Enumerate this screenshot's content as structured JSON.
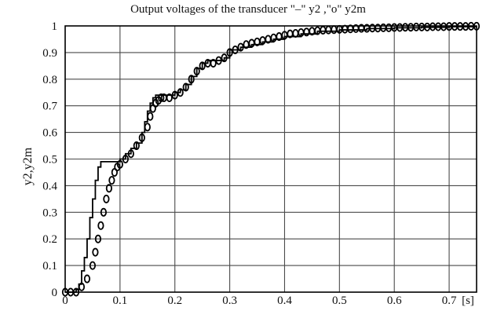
{
  "chart_data": {
    "type": "line",
    "title": "Output voltages of the transducer  \"–\" y2 ,\"o\" y2m",
    "ylabel": "y2,y2m",
    "xlabel": "[s]",
    "xlim": [
      0,
      0.75
    ],
    "ylim": [
      0,
      1
    ],
    "grid": true,
    "xticks": [
      0,
      0.1,
      0.2,
      0.3,
      0.4,
      0.5,
      0.6,
      0.7
    ],
    "xtick_labels": [
      "0",
      "0.1",
      "0.2",
      "0.3",
      "0.4",
      "0.5",
      "0.6",
      "0.7"
    ],
    "yticks": [
      0,
      0.1,
      0.2,
      0.3,
      0.4,
      0.5,
      0.6,
      0.7,
      0.8,
      0.9,
      1
    ],
    "ytick_labels": [
      "0",
      "0.1",
      "0.2",
      "0.3",
      "0.4",
      "0.5",
      "0.6",
      "0.7",
      "0.8",
      "0.9",
      "1"
    ],
    "series": [
      {
        "name": "y2",
        "style": "step line",
        "x": [
          0,
          0.01,
          0.02,
          0.025,
          0.03,
          0.035,
          0.04,
          0.045,
          0.05,
          0.055,
          0.06,
          0.065,
          0.07,
          0.075,
          0.08,
          0.09,
          0.1,
          0.11,
          0.12,
          0.13,
          0.14,
          0.145,
          0.15,
          0.155,
          0.16,
          0.165,
          0.17,
          0.175,
          0.18,
          0.19,
          0.2,
          0.21,
          0.22,
          0.23,
          0.24,
          0.25,
          0.26,
          0.27,
          0.28,
          0.29,
          0.3,
          0.32,
          0.34,
          0.36,
          0.38,
          0.4,
          0.43,
          0.46,
          0.5,
          0.55,
          0.6,
          0.65,
          0.7,
          0.75
        ],
        "y": [
          0,
          0,
          0.01,
          0.03,
          0.08,
          0.13,
          0.2,
          0.28,
          0.35,
          0.42,
          0.47,
          0.49,
          0.49,
          0.49,
          0.49,
          0.49,
          0.5,
          0.52,
          0.54,
          0.56,
          0.6,
          0.64,
          0.68,
          0.71,
          0.73,
          0.74,
          0.74,
          0.74,
          0.74,
          0.74,
          0.75,
          0.76,
          0.78,
          0.81,
          0.84,
          0.86,
          0.87,
          0.87,
          0.87,
          0.88,
          0.91,
          0.92,
          0.93,
          0.94,
          0.95,
          0.96,
          0.97,
          0.98,
          0.985,
          0.99,
          0.993,
          0.995,
          0.997,
          0.998
        ]
      },
      {
        "name": "y2m",
        "style": "circle markers",
        "x": [
          0,
          0.01,
          0.02,
          0.03,
          0.04,
          0.05,
          0.055,
          0.06,
          0.065,
          0.07,
          0.075,
          0.08,
          0.085,
          0.09,
          0.095,
          0.1,
          0.11,
          0.12,
          0.13,
          0.14,
          0.15,
          0.155,
          0.16,
          0.165,
          0.17,
          0.175,
          0.18,
          0.19,
          0.2,
          0.21,
          0.22,
          0.23,
          0.24,
          0.25,
          0.26,
          0.27,
          0.28,
          0.29,
          0.3,
          0.31,
          0.32,
          0.33,
          0.34,
          0.35,
          0.36,
          0.37,
          0.38,
          0.39,
          0.4,
          0.41,
          0.42,
          0.43,
          0.44,
          0.45,
          0.46,
          0.47,
          0.48,
          0.49,
          0.5,
          0.51,
          0.52,
          0.53,
          0.54,
          0.55,
          0.56,
          0.57,
          0.58,
          0.59,
          0.6,
          0.61,
          0.62,
          0.63,
          0.64,
          0.65,
          0.66,
          0.67,
          0.68,
          0.69,
          0.7,
          0.71,
          0.72,
          0.73,
          0.74,
          0.75
        ],
        "y": [
          0,
          0,
          0,
          0.02,
          0.05,
          0.1,
          0.15,
          0.2,
          0.25,
          0.3,
          0.35,
          0.39,
          0.42,
          0.45,
          0.47,
          0.48,
          0.5,
          0.52,
          0.55,
          0.58,
          0.62,
          0.66,
          0.69,
          0.71,
          0.72,
          0.73,
          0.73,
          0.73,
          0.74,
          0.75,
          0.77,
          0.8,
          0.83,
          0.85,
          0.86,
          0.86,
          0.87,
          0.88,
          0.9,
          0.91,
          0.92,
          0.93,
          0.935,
          0.94,
          0.945,
          0.95,
          0.955,
          0.96,
          0.965,
          0.97,
          0.972,
          0.975,
          0.977,
          0.98,
          0.982,
          0.984,
          0.985,
          0.986,
          0.987,
          0.988,
          0.989,
          0.99,
          0.991,
          0.991,
          0.992,
          0.992,
          0.993,
          0.993,
          0.994,
          0.994,
          0.995,
          0.995,
          0.996,
          0.996,
          0.996,
          0.997,
          0.997,
          0.997,
          0.998,
          0.998,
          0.998,
          0.998,
          0.999,
          0.999
        ]
      }
    ]
  }
}
